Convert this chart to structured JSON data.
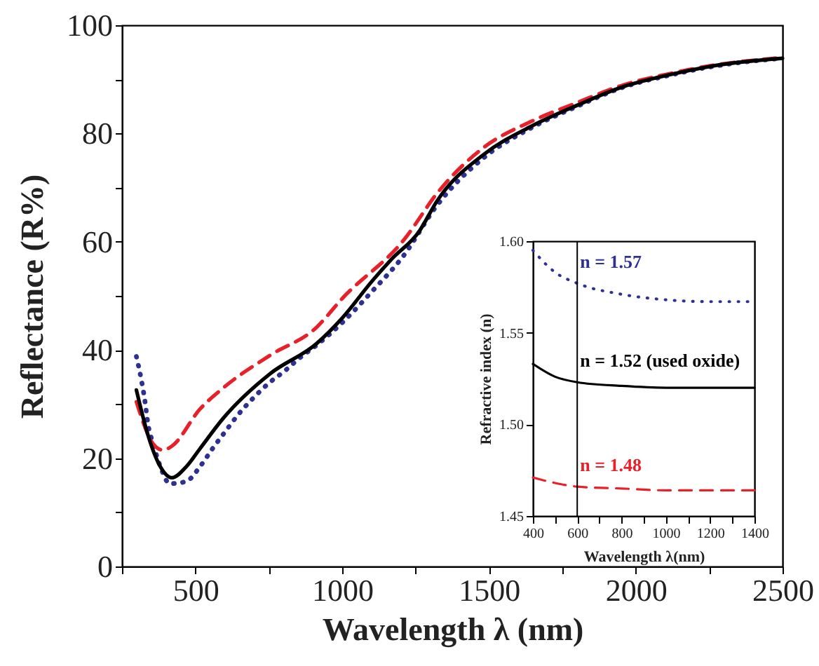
{
  "chart_data": [
    {
      "type": "line",
      "xlabel": "Wavelength λ (nm)",
      "ylabel": "Reflectance (R%)",
      "xlim": [
        250,
        2500
      ],
      "ylim": [
        0,
        100
      ],
      "xticks": [
        {
          "value": 250,
          "label": null
        },
        500,
        {
          "value": 750,
          "label": null
        },
        1000,
        {
          "value": 1250,
          "label": null
        },
        1500,
        {
          "value": 1750,
          "label": null
        },
        2000,
        {
          "value": 2250,
          "label": null
        },
        2500
      ],
      "yticks": [
        0,
        {
          "value": 10,
          "label": null
        },
        20,
        {
          "value": 30,
          "label": null
        },
        40,
        {
          "value": 50,
          "label": null
        },
        60,
        {
          "value": 70,
          "label": null
        },
        80,
        {
          "value": 90,
          "label": null
        },
        100
      ],
      "series": [
        {
          "color": "#2e3192",
          "line_style": "dotted",
          "x": [
            299,
            314,
            328,
            338,
            357,
            381,
            413,
            468,
            519,
            560,
            600,
            648,
            695,
            751,
            806,
            857,
            913,
            1005,
            1103,
            1206,
            1324,
            1484,
            1643,
            1800,
            1960,
            2119,
            2276,
            2500
          ],
          "values": [
            38.8,
            35,
            30.6,
            26.5,
            22.5,
            18.4,
            15.3,
            15.7,
            18.7,
            21.9,
            24.8,
            28.2,
            31,
            33.9,
            36.2,
            38.6,
            40.9,
            45.3,
            50.9,
            57.2,
            66.8,
            75.6,
            81,
            85,
            88.6,
            90.8,
            92.5,
            93.9
          ]
        },
        {
          "color": "#e8202a",
          "line_style": "dashed",
          "x": [
            299,
            357,
            390,
            419,
            516,
            595,
            754,
            913,
            1000,
            1214,
            1324,
            1484,
            1643,
            1800,
            1960,
            2119,
            2276,
            2500
          ],
          "values": [
            30.4,
            22.6,
            21.5,
            22.2,
            29.1,
            33,
            39,
            44.2,
            49.5,
            60.6,
            69,
            77.5,
            82.2,
            85.7,
            89,
            91.1,
            92.7,
            94
          ]
        },
        {
          "color": "#000000",
          "line_style": "solid",
          "x": [
            299,
            340,
            380,
            420,
            470,
            516,
            595,
            754,
            913,
            1000,
            1103,
            1167,
            1262,
            1324,
            1484,
            1643,
            1800,
            1960,
            2119,
            2276,
            2500
          ],
          "values": [
            32.6,
            24,
            18.5,
            16.4,
            18.5,
            21.8,
            27.4,
            35.6,
            41.2,
            45.9,
            52.8,
            56.7,
            61.9,
            67.6,
            76.2,
            81.3,
            85.2,
            88.7,
            90.9,
            92.6,
            93.9
          ]
        }
      ]
    },
    {
      "type": "line",
      "xlabel": "Wavelength λ(nm)",
      "ylabel": "Refractive index (n)",
      "xlim": [
        400,
        1400
      ],
      "ylim": [
        1.45,
        1.6
      ],
      "xticks": [
        400,
        {
          "value": 500,
          "label": null
        },
        600,
        {
          "value": 700,
          "label": null
        },
        800,
        {
          "value": 900,
          "label": null
        },
        1000,
        {
          "value": 1100,
          "label": null
        },
        1200,
        {
          "value": 1300,
          "label": null
        },
        1400
      ],
      "yticks": [
        {
          "value": 1.45,
          "label": "1.45"
        },
        {
          "value": 1.5,
          "label": "1.50"
        },
        {
          "value": 1.55,
          "label": "1.55"
        },
        {
          "value": 1.6,
          "label": "1.60"
        }
      ],
      "ref_lines": [
        {
          "axis": "x",
          "value": 600
        }
      ],
      "series": [
        {
          "name": "n = 1.57",
          "color": "#2e3192",
          "line_style": "dotted",
          "x": [
            400,
            500,
            600,
            800,
            1000,
            1200,
            1400
          ],
          "values": [
            1.595,
            1.583,
            1.577,
            1.571,
            1.568,
            1.567,
            1.567
          ]
        },
        {
          "name": "n = 1.52  (used oxide)",
          "color": "#000000",
          "line_style": "solid",
          "x": [
            400,
            500,
            600,
            800,
            1000,
            1200,
            1400
          ],
          "values": [
            1.533,
            1.526,
            1.523,
            1.521,
            1.52,
            1.52,
            1.52
          ]
        },
        {
          "name": "n = 1.48",
          "color": "#e8202a",
          "line_style": "dashed",
          "x": [
            400,
            500,
            600,
            800,
            1000,
            1200,
            1400
          ],
          "values": [
            1.471,
            1.468,
            1.466,
            1.465,
            1.464,
            1.464,
            1.464
          ]
        }
      ]
    }
  ]
}
